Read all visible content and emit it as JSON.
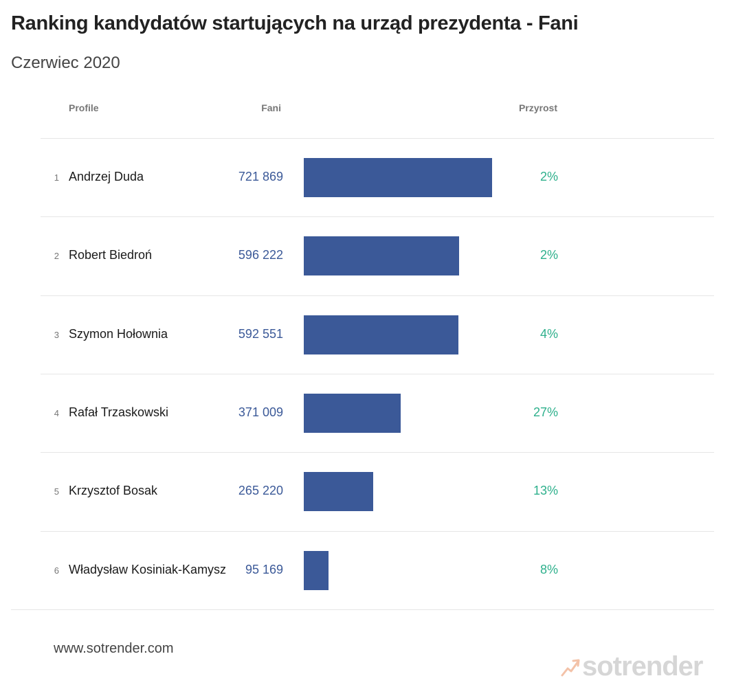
{
  "title": "Ranking kandydatów startujących na urząd prezydenta - Fani",
  "subtitle": "Czerwiec 2020",
  "columns": {
    "profile": "Profile",
    "fans": "Fani",
    "growth": "Przyrost"
  },
  "footer": {
    "url": "www.sotrender.com",
    "logo_text": "sotrender"
  },
  "colors": {
    "bar": "#3b5998",
    "growth": "#2eb08c",
    "fans_text": "#3b5998"
  },
  "chart_data": {
    "type": "table",
    "rows": [
      {
        "rank": "1",
        "name": "Andrzej Duda",
        "fans_label": "721 869",
        "fans": 721869,
        "growth": "2%"
      },
      {
        "rank": "2",
        "name": "Robert Biedroń",
        "fans_label": "596 222",
        "fans": 596222,
        "growth": "2%"
      },
      {
        "rank": "3",
        "name": "Szymon Hołownia",
        "fans_label": "592 551",
        "fans": 592551,
        "growth": "4%"
      },
      {
        "rank": "4",
        "name": "Rafał Trzaskowski",
        "fans_label": "371 009",
        "fans": 371009,
        "growth": "27%"
      },
      {
        "rank": "5",
        "name": "Krzysztof Bosak",
        "fans_label": "265 220",
        "fans": 265220,
        "growth": "13%"
      },
      {
        "rank": "6",
        "name": "Władysław Kosiniak-Kamysz",
        "fans_label": "95 169",
        "fans": 95169,
        "growth": "8%"
      }
    ]
  }
}
